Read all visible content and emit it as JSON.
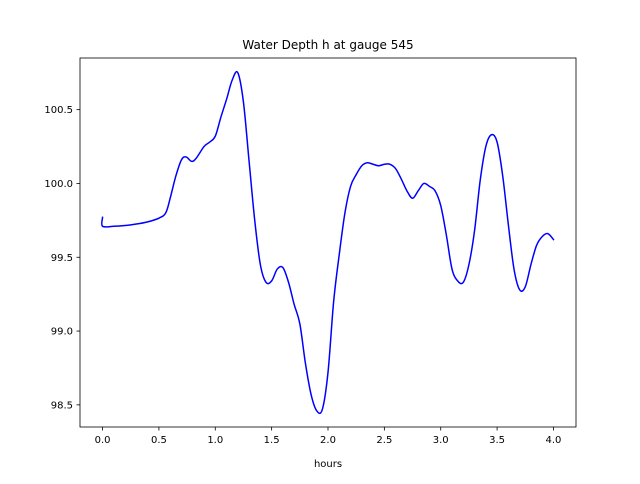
{
  "chart_data": {
    "type": "line",
    "title": "Water Depth h at gauge 545",
    "xlabel": "hours",
    "ylabel": "",
    "xlim": [
      -0.2,
      4.2
    ],
    "ylim": [
      98.35,
      100.85
    ],
    "grid": false,
    "xticks": [
      {
        "value": 0.0,
        "label": "0.0"
      },
      {
        "value": 0.5,
        "label": "0.5"
      },
      {
        "value": 1.0,
        "label": "1.0"
      },
      {
        "value": 1.5,
        "label": "1.5"
      },
      {
        "value": 2.0,
        "label": "2.0"
      },
      {
        "value": 2.5,
        "label": "2.5"
      },
      {
        "value": 3.0,
        "label": "3.0"
      },
      {
        "value": 3.5,
        "label": "3.5"
      },
      {
        "value": 4.0,
        "label": "4.0"
      }
    ],
    "yticks": [
      {
        "value": 98.5,
        "label": "98.5"
      },
      {
        "value": 99.0,
        "label": "99.0"
      },
      {
        "value": 99.5,
        "label": "99.5"
      },
      {
        "value": 100.0,
        "label": "100.0"
      },
      {
        "value": 100.5,
        "label": "100.5"
      }
    ],
    "series": [
      {
        "name": "",
        "color": "#0000ff",
        "points": [
          [
            0.0,
            99.77
          ],
          [
            0.0,
            99.71
          ],
          [
            0.1,
            99.71
          ],
          [
            0.2,
            99.715
          ],
          [
            0.3,
            99.725
          ],
          [
            0.4,
            99.74
          ],
          [
            0.5,
            99.765
          ],
          [
            0.56,
            99.8
          ],
          [
            0.6,
            99.9
          ],
          [
            0.65,
            100.05
          ],
          [
            0.7,
            100.16
          ],
          [
            0.74,
            100.18
          ],
          [
            0.79,
            100.15
          ],
          [
            0.83,
            100.17
          ],
          [
            0.9,
            100.25
          ],
          [
            0.95,
            100.28
          ],
          [
            1.0,
            100.32
          ],
          [
            1.05,
            100.45
          ],
          [
            1.1,
            100.57
          ],
          [
            1.15,
            100.7
          ],
          [
            1.2,
            100.75
          ],
          [
            1.25,
            100.55
          ],
          [
            1.3,
            100.15
          ],
          [
            1.35,
            99.75
          ],
          [
            1.4,
            99.45
          ],
          [
            1.45,
            99.33
          ],
          [
            1.5,
            99.34
          ],
          [
            1.55,
            99.42
          ],
          [
            1.6,
            99.43
          ],
          [
            1.65,
            99.33
          ],
          [
            1.7,
            99.18
          ],
          [
            1.75,
            99.05
          ],
          [
            1.8,
            98.78
          ],
          [
            1.85,
            98.57
          ],
          [
            1.9,
            98.46
          ],
          [
            1.95,
            98.47
          ],
          [
            2.0,
            98.72
          ],
          [
            2.05,
            99.2
          ],
          [
            2.1,
            99.52
          ],
          [
            2.15,
            99.8
          ],
          [
            2.2,
            99.98
          ],
          [
            2.25,
            100.06
          ],
          [
            2.3,
            100.12
          ],
          [
            2.35,
            100.14
          ],
          [
            2.4,
            100.13
          ],
          [
            2.45,
            100.12
          ],
          [
            2.5,
            100.13
          ],
          [
            2.55,
            100.13
          ],
          [
            2.6,
            100.1
          ],
          [
            2.65,
            100.03
          ],
          [
            2.7,
            99.95
          ],
          [
            2.75,
            99.9
          ],
          [
            2.8,
            99.95
          ],
          [
            2.85,
            100.0
          ],
          [
            2.9,
            99.98
          ],
          [
            2.95,
            99.95
          ],
          [
            3.0,
            99.85
          ],
          [
            3.05,
            99.65
          ],
          [
            3.1,
            99.42
          ],
          [
            3.15,
            99.34
          ],
          [
            3.2,
            99.33
          ],
          [
            3.25,
            99.45
          ],
          [
            3.3,
            99.68
          ],
          [
            3.35,
            100.02
          ],
          [
            3.4,
            100.25
          ],
          [
            3.45,
            100.33
          ],
          [
            3.5,
            100.28
          ],
          [
            3.55,
            100.05
          ],
          [
            3.6,
            99.72
          ],
          [
            3.65,
            99.42
          ],
          [
            3.7,
            99.28
          ],
          [
            3.75,
            99.3
          ],
          [
            3.8,
            99.45
          ],
          [
            3.85,
            99.58
          ],
          [
            3.9,
            99.64
          ],
          [
            3.95,
            99.66
          ],
          [
            4.0,
            99.62
          ]
        ]
      }
    ]
  }
}
